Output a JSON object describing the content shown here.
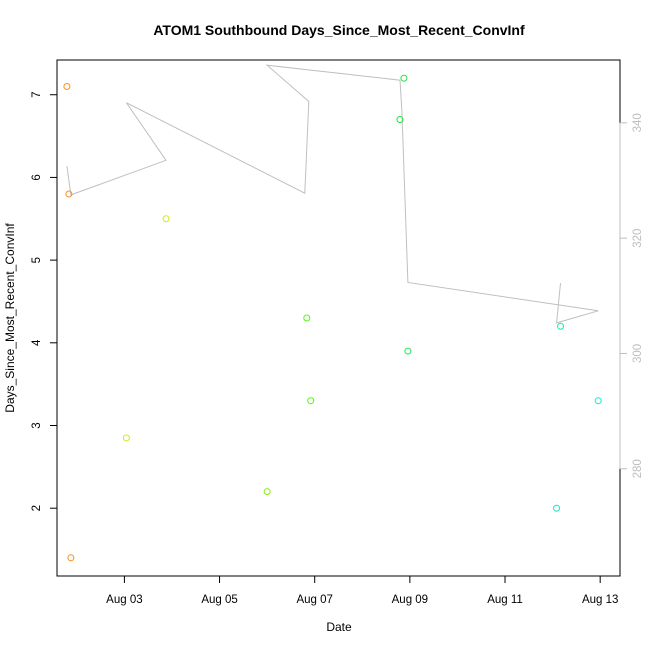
{
  "chart_data": {
    "type": "scatter",
    "title": "ATOM1 Southbound Days_Since_Most_Recent_ConvInf",
    "xlabel": "Date",
    "ylabel": "Days_Since_Most_Recent_ConvInf",
    "xlim": [
      "2025-08-01T14:00",
      "2025-08-13T10:00"
    ],
    "ylim": [
      1.18,
      7.42
    ],
    "y2lim": [
      261.4,
      350.9
    ],
    "x_tick_labels": [
      "Aug 03",
      "Aug 05",
      "Aug 07",
      "Aug 09",
      "Aug 11",
      "Aug 13"
    ],
    "x_tick_dates": [
      "2025-08-03T00:00",
      "2025-08-05T00:00",
      "2025-08-07T00:00",
      "2025-08-09T00:00",
      "2025-08-11T00:00",
      "2025-08-13T00:00"
    ],
    "y_ticks": [
      2,
      3,
      4,
      5,
      6,
      7
    ],
    "y2_ticks": [
      280,
      300,
      320,
      340
    ],
    "points": [
      {
        "x": "2025-08-01T19:00",
        "y": 7.1,
        "color": "#ff8c1a"
      },
      {
        "x": "2025-08-01T20:00",
        "y": 5.8,
        "color": "#ff8c1a"
      },
      {
        "x": "2025-08-01T21:00",
        "y": 1.4,
        "color": "#ff8c1a"
      },
      {
        "x": "2025-08-03T01:00",
        "y": 2.85,
        "color": "#d9e61a"
      },
      {
        "x": "2025-08-03T21:00",
        "y": 5.5,
        "color": "#c8f01a"
      },
      {
        "x": "2025-08-06T00:00",
        "y": 2.2,
        "color": "#8cf01a"
      },
      {
        "x": "2025-08-06T20:00",
        "y": 4.3,
        "color": "#5af01a"
      },
      {
        "x": "2025-08-06T22:00",
        "y": 3.3,
        "color": "#5af01a"
      },
      {
        "x": "2025-08-08T19:00",
        "y": 6.7,
        "color": "#1ae63c"
      },
      {
        "x": "2025-08-08T21:00",
        "y": 7.2,
        "color": "#1ae63c"
      },
      {
        "x": "2025-08-08T23:00",
        "y": 3.9,
        "color": "#1ae65a"
      },
      {
        "x": "2025-08-12T02:00",
        "y": 2.0,
        "color": "#1ae6b4"
      },
      {
        "x": "2025-08-12T04:00",
        "y": 4.2,
        "color": "#1ae6b4"
      },
      {
        "x": "2025-08-12T23:00",
        "y": 3.3,
        "color": "#1ae6c8"
      }
    ],
    "line_series": {
      "color": "#bfbfbf",
      "axis": "right",
      "points": [
        {
          "x": "2025-08-01T19:00",
          "y": 332.5
        },
        {
          "x": "2025-08-01T21:00",
          "y": 327.5
        },
        {
          "x": "2025-08-03T21:00",
          "y": 333.5
        },
        {
          "x": "2025-08-03T01:00",
          "y": 343.5
        },
        {
          "x": "2025-08-06T19:00",
          "y": 327.8
        },
        {
          "x": "2025-08-06T21:00",
          "y": 343.7
        },
        {
          "x": "2025-08-06T00:00",
          "y": 350.0
        },
        {
          "x": "2025-08-08T19:00",
          "y": 347.4
        },
        {
          "x": "2025-08-08T20:00",
          "y": 342.0
        },
        {
          "x": "2025-08-08T23:00",
          "y": 312.3
        },
        {
          "x": "2025-08-12T23:00",
          "y": 307.4
        },
        {
          "x": "2025-08-12T02:00",
          "y": 305.3
        },
        {
          "x": "2025-08-12T04:00",
          "y": 312.2
        }
      ]
    },
    "grid": false,
    "legend": "none"
  }
}
